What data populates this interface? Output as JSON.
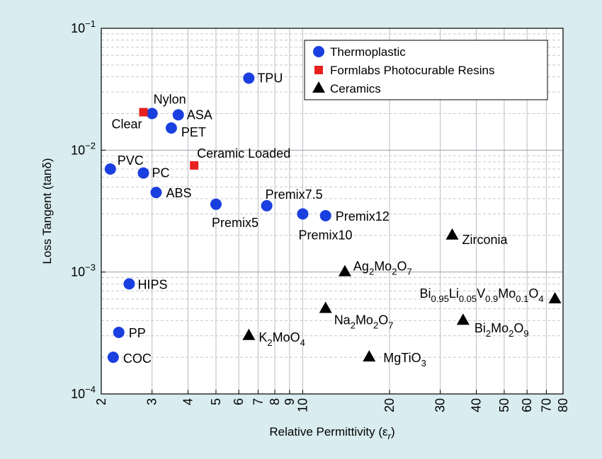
{
  "chart_data": {
    "type": "scatter",
    "xlabel": "Relative Permittivity (ε",
    "xlabel_sub": "r",
    "xlabel_end": ")",
    "ylabel": "Loss Tangent (tanδ)",
    "x_scale": "log",
    "y_scale": "log",
    "xlim": [
      2,
      80
    ],
    "ylim": [
      0.0001,
      0.1
    ],
    "x_ticks": [
      2,
      3,
      4,
      5,
      6,
      7,
      8,
      9,
      10,
      20,
      30,
      40,
      50,
      60,
      70,
      80
    ],
    "y_ticks": [
      {
        "value": 0.1,
        "base": "10",
        "exp": "−1"
      },
      {
        "value": 0.01,
        "base": "10",
        "exp": "−2"
      },
      {
        "value": 0.001,
        "base": "10",
        "exp": "−3"
      },
      {
        "value": 0.0001,
        "base": "10",
        "exp": "−4"
      }
    ],
    "grid": true,
    "legend_position": "top-right",
    "series": [
      {
        "name": "Thermoplastic",
        "marker": "circle",
        "color": "#1a3fe0",
        "points": [
          {
            "label": "TPU",
            "x": 6.5,
            "y": 0.039
          },
          {
            "label": "Nylon",
            "x": 3.0,
            "y": 0.02
          },
          {
            "label": "ASA",
            "x": 3.7,
            "y": 0.0195
          },
          {
            "label": "PET",
            "x": 3.5,
            "y": 0.0152
          },
          {
            "label": "PVC",
            "x": 2.15,
            "y": 0.007
          },
          {
            "label": "PC",
            "x": 2.8,
            "y": 0.0065
          },
          {
            "label": "ABS",
            "x": 3.1,
            "y": 0.0045
          },
          {
            "label": "Premix5",
            "x": 5.0,
            "y": 0.0036
          },
          {
            "label": "Premix7.5",
            "x": 7.5,
            "y": 0.0035
          },
          {
            "label": "Premix10",
            "x": 10.0,
            "y": 0.003
          },
          {
            "label": "Premix12",
            "x": 12.0,
            "y": 0.0029
          },
          {
            "label": "HIPS",
            "x": 2.5,
            "y": 0.0008
          },
          {
            "label": "PP",
            "x": 2.3,
            "y": 0.00032
          },
          {
            "label": "COC",
            "x": 2.2,
            "y": 0.0002
          }
        ]
      },
      {
        "name": "Formlabs Photocurable Resins",
        "marker": "square",
        "color": "#e81f1f",
        "points": [
          {
            "label": "Clear",
            "x": 2.8,
            "y": 0.0205
          },
          {
            "label": "Ceramic Loaded",
            "x": 4.2,
            "y": 0.0075
          }
        ]
      },
      {
        "name": "Ceramics",
        "marker": "triangle",
        "color": "#000000",
        "points": [
          {
            "label": "Zirconia",
            "x": 33,
            "y": 0.002
          },
          {
            "label": "Ag2Mo2O7",
            "parts": [
              [
                "Ag",
                ""
              ],
              [
                "2",
                "sub"
              ],
              [
                "Mo",
                ""
              ],
              [
                "2",
                "sub"
              ],
              [
                "O",
                ""
              ],
              [
                "7",
                "sub"
              ]
            ],
            "x": 14,
            "y": 0.001
          },
          {
            "label": "Bi0.95Li0.05V0.9Mo0.1O4",
            "parts": [
              [
                "Bi",
                ""
              ],
              [
                "0.95",
                "sub"
              ],
              [
                "Li",
                ""
              ],
              [
                "0.05",
                "sub"
              ],
              [
                "V",
                ""
              ],
              [
                "0.9",
                "sub"
              ],
              [
                "Mo",
                ""
              ],
              [
                "0.1",
                "sub"
              ],
              [
                "O",
                ""
              ],
              [
                "4",
                "sub"
              ]
            ],
            "x": 75,
            "y": 0.0006
          },
          {
            "label": "Na2Mo2O7",
            "parts": [
              [
                "Na",
                ""
              ],
              [
                "2",
                "sub"
              ],
              [
                "Mo",
                ""
              ],
              [
                "2",
                "sub"
              ],
              [
                "O",
                ""
              ],
              [
                "7",
                "sub"
              ]
            ],
            "x": 12,
            "y": 0.0005
          },
          {
            "label": "Bi2Mo2O9",
            "parts": [
              [
                "Bi",
                ""
              ],
              [
                "2",
                "sub"
              ],
              [
                "Mo",
                ""
              ],
              [
                "2",
                "sub"
              ],
              [
                "O",
                ""
              ],
              [
                "9",
                "sub"
              ]
            ],
            "x": 36,
            "y": 0.0004
          },
          {
            "label": "K2MoO4",
            "parts": [
              [
                "K",
                ""
              ],
              [
                "2",
                "sub"
              ],
              [
                "MoO",
                ""
              ],
              [
                "4",
                "sub"
              ]
            ],
            "x": 6.5,
            "y": 0.0003
          },
          {
            "label": "MgTiO3",
            "parts": [
              [
                "MgTiO",
                ""
              ],
              [
                "3",
                "sub"
              ]
            ],
            "x": 17,
            "y": 0.0002
          }
        ]
      }
    ]
  }
}
